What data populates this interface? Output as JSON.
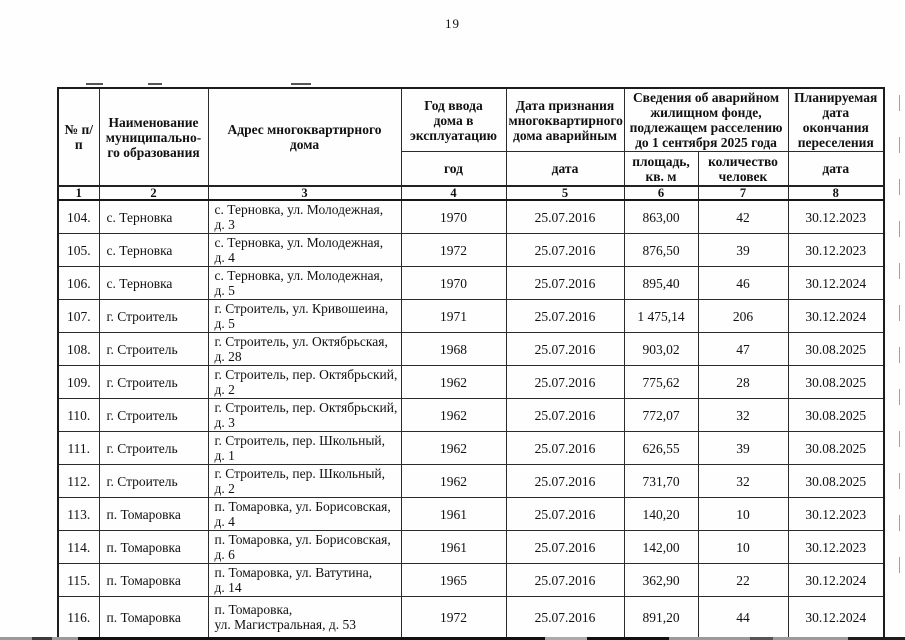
{
  "page": {
    "number": "19"
  },
  "table": {
    "header": {
      "col1": "№ п/п",
      "col2": "Наименование\nмуниципально-\nго образования",
      "col3": "Адрес многоквартирного\nдома",
      "col4": "Год ввода\nдома в\nэксплуатацию",
      "col5": "Дата признания\nмногоквартирного\nдома аварийным",
      "col67": "Сведения об аварийном\nжилищном фонде,\nподлежащем расселению\nдо 1 сентября 2025 года",
      "col8": "Планируемая\nдата\nокончания\nпереселения",
      "sub4": "год",
      "sub5": "дата",
      "sub6": "площадь,\nкв. м",
      "sub7": "количество\nчеловек",
      "sub8": "дата",
      "numbering": [
        "1",
        "2",
        "3",
        "4",
        "5",
        "6",
        "7",
        "8"
      ]
    },
    "rows": [
      [
        "104.",
        "с. Терновка",
        "с. Терновка, ул. Молодежная,\nд. 3",
        "1970",
        "25.07.2016",
        "863,00",
        "42",
        "30.12.2023"
      ],
      [
        "105.",
        "с. Терновка",
        "с. Терновка, ул. Молодежная,\nд. 4",
        "1972",
        "25.07.2016",
        "876,50",
        "39",
        "30.12.2023"
      ],
      [
        "106.",
        "с. Терновка",
        "с. Терновка, ул. Молодежная,\nд. 5",
        "1970",
        "25.07.2016",
        "895,40",
        "46",
        "30.12.2024"
      ],
      [
        "107.",
        "г. Строитель",
        "г. Строитель, ул. Кривошеина,\nд. 5",
        "1971",
        "25.07.2016",
        "1 475,14",
        "206",
        "30.12.2024"
      ],
      [
        "108.",
        "г. Строитель",
        "г. Строитель, ул. Октябрьская,\nд. 28",
        "1968",
        "25.07.2016",
        "903,02",
        "47",
        "30.08.2025"
      ],
      [
        "109.",
        "г. Строитель",
        "г. Строитель, пер. Октябрьский,\nд. 2",
        "1962",
        "25.07.2016",
        "775,62",
        "28",
        "30.08.2025"
      ],
      [
        "110.",
        "г. Строитель",
        "г. Строитель, пер. Октябрьский,\nд. 3",
        "1962",
        "25.07.2016",
        "772,07",
        "32",
        "30.08.2025"
      ],
      [
        "111.",
        "г. Строитель",
        "г. Строитель, пер. Школьный,\nд. 1",
        "1962",
        "25.07.2016",
        "626,55",
        "39",
        "30.08.2025"
      ],
      [
        "112.",
        "г. Строитель",
        "г. Строитель, пер. Школьный,\nд. 2",
        "1962",
        "25.07.2016",
        "731,70",
        "32",
        "30.08.2025"
      ],
      [
        "113.",
        "п. Томаровка",
        "п. Томаровка, ул. Борисовская,\nд. 4",
        "1961",
        "25.07.2016",
        "140,20",
        "10",
        "30.12.2023"
      ],
      [
        "114.",
        "п. Томаровка",
        "п. Томаровка, ул. Борисовская,\nд. 6",
        "1961",
        "25.07.2016",
        "142,00",
        "10",
        "30.12.2023"
      ],
      [
        "115.",
        "п. Томаровка",
        "п. Томаровка, ул. Ватутина,\nд. 14",
        "1965",
        "25.07.2016",
        "362,90",
        "22",
        "30.12.2024"
      ],
      [
        "116.",
        "п. Томаровка",
        "п. Томаровка,\nул. Магистральная, д. 53",
        "1972",
        "25.07.2016",
        "891,20",
        "44",
        "30.12.2024"
      ]
    ]
  }
}
